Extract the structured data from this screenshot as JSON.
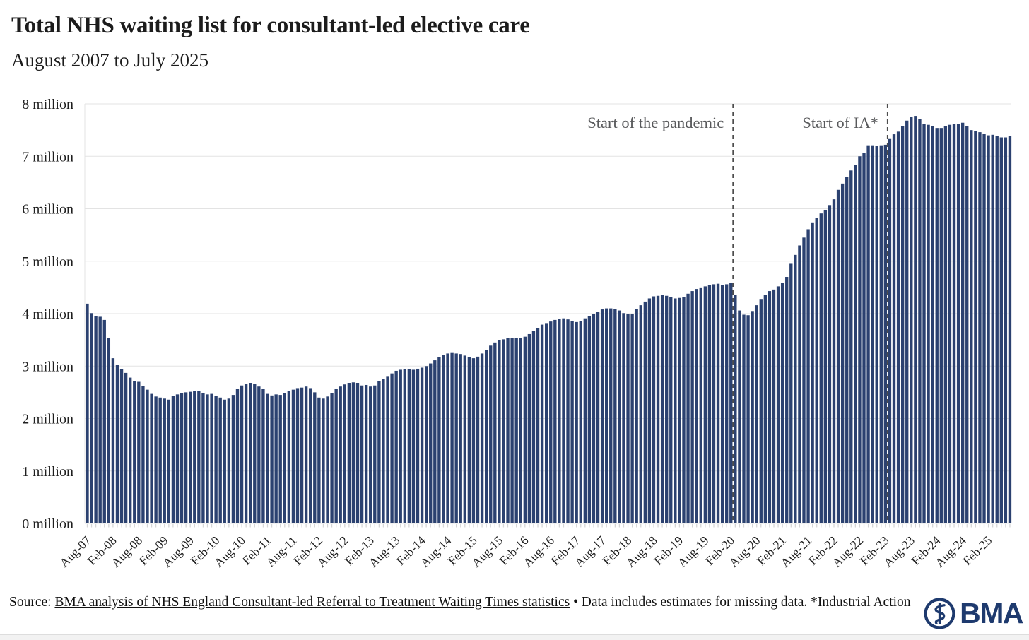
{
  "header": {
    "title": "Total NHS waiting list for consultant-led elective care",
    "subtitle": "August 2007 to July 2025"
  },
  "source": {
    "prefix": "Source: ",
    "link_text": "BMA analysis of NHS England Consultant-led Referral to Treatment Waiting Times statistics",
    "suffix": " • Data includes estimates for missing data. *Industrial Action"
  },
  "logo": {
    "text": "BMA"
  },
  "colors": {
    "bar": "#2b4170",
    "grid": "#e3e3e3",
    "axis_tick": "#d6d6d6",
    "axis_text": "#1f1f1f",
    "dashed_line": "#4d4d4d",
    "annotation_text": "#58595b",
    "logo_navy": "#1e3a6e"
  },
  "chart_data": {
    "type": "bar",
    "title": "Total NHS waiting list for consultant-led elective care",
    "period": "August 2007 to July 2025",
    "unit": "million",
    "ylim": [
      0,
      8
    ],
    "grid": true,
    "ytick_labels": [
      "0 million",
      "1 million",
      "2 million",
      "3 million",
      "4 million",
      "5 million",
      "6 million",
      "7 million",
      "8 million"
    ],
    "xtick_every": 6,
    "xtick_labels": [
      "Aug-07",
      "Feb-08",
      "Aug-08",
      "Feb-09",
      "Aug-09",
      "Feb-10",
      "Aug-10",
      "Feb-11",
      "Aug-11",
      "Feb-12",
      "Aug-12",
      "Feb-13",
      "Aug-13",
      "Feb-14",
      "Aug-14",
      "Feb-15",
      "Aug-15",
      "Feb-16",
      "Aug-16",
      "Feb-17",
      "Aug-17",
      "Feb-18",
      "Aug-18",
      "Feb-19",
      "Aug-19",
      "Feb-20",
      "Aug-20",
      "Feb-21",
      "Aug-21",
      "Feb-22",
      "Aug-22",
      "Feb-23",
      "Aug-23",
      "Feb-24",
      "Aug-24",
      "Feb-25"
    ],
    "x_start": "Aug-07",
    "x_end": "Jul-25",
    "values": [
      4.19,
      4.01,
      3.95,
      3.94,
      3.88,
      3.54,
      3.15,
      3.02,
      2.94,
      2.87,
      2.78,
      2.72,
      2.7,
      2.62,
      2.55,
      2.47,
      2.42,
      2.4,
      2.38,
      2.36,
      2.43,
      2.46,
      2.49,
      2.5,
      2.51,
      2.53,
      2.52,
      2.49,
      2.46,
      2.47,
      2.43,
      2.4,
      2.36,
      2.38,
      2.45,
      2.56,
      2.63,
      2.66,
      2.68,
      2.66,
      2.61,
      2.56,
      2.47,
      2.44,
      2.46,
      2.45,
      2.48,
      2.52,
      2.55,
      2.58,
      2.59,
      2.61,
      2.58,
      2.5,
      2.4,
      2.38,
      2.42,
      2.49,
      2.56,
      2.61,
      2.65,
      2.68,
      2.69,
      2.68,
      2.63,
      2.64,
      2.61,
      2.63,
      2.71,
      2.76,
      2.81,
      2.86,
      2.91,
      2.93,
      2.94,
      2.94,
      2.93,
      2.95,
      2.97,
      3.0,
      3.05,
      3.11,
      3.17,
      3.21,
      3.24,
      3.25,
      3.24,
      3.23,
      3.2,
      3.17,
      3.15,
      3.18,
      3.24,
      3.31,
      3.39,
      3.45,
      3.49,
      3.51,
      3.53,
      3.54,
      3.53,
      3.54,
      3.56,
      3.61,
      3.67,
      3.73,
      3.79,
      3.82,
      3.85,
      3.88,
      3.9,
      3.91,
      3.89,
      3.86,
      3.84,
      3.86,
      3.91,
      3.95,
      4.0,
      4.04,
      4.08,
      4.1,
      4.1,
      4.09,
      4.06,
      4.01,
      3.99,
      3.99,
      4.09,
      4.16,
      4.23,
      4.29,
      4.33,
      4.34,
      4.35,
      4.34,
      4.31,
      4.29,
      4.3,
      4.32,
      4.38,
      4.43,
      4.47,
      4.5,
      4.52,
      4.54,
      4.56,
      4.57,
      4.55,
      4.56,
      4.58,
      4.35,
      4.06,
      3.98,
      3.97,
      4.05,
      4.16,
      4.28,
      4.36,
      4.43,
      4.46,
      4.52,
      4.59,
      4.7,
      4.95,
      5.12,
      5.3,
      5.45,
      5.61,
      5.74,
      5.83,
      5.91,
      5.98,
      6.07,
      6.18,
      6.36,
      6.48,
      6.61,
      6.73,
      6.84,
      7.0,
      7.07,
      7.21,
      7.21,
      7.2,
      7.21,
      7.22,
      7.33,
      7.42,
      7.47,
      7.57,
      7.68,
      7.75,
      7.77,
      7.71,
      7.61,
      7.6,
      7.58,
      7.54,
      7.54,
      7.57,
      7.6,
      7.62,
      7.62,
      7.64,
      7.57,
      7.5,
      7.48,
      7.46,
      7.43,
      7.4,
      7.41,
      7.39,
      7.36,
      7.36,
      7.39
    ],
    "vlines": [
      {
        "label": "Start of the pandemic",
        "after_index": 150
      },
      {
        "label": "Start of IA*",
        "after_index": 186
      }
    ],
    "legend": "none"
  }
}
